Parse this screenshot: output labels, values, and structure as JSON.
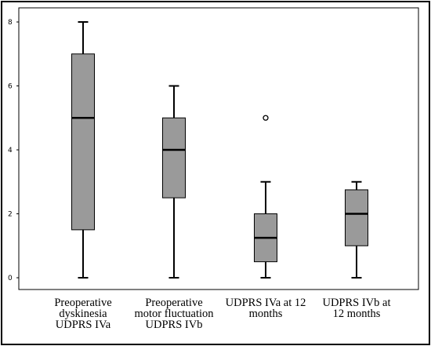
{
  "chart_data": {
    "type": "boxplot",
    "categories": [
      [
        "Preoperative",
        "dyskinesia",
        "UDPRS IVa"
      ],
      [
        "Preoperative",
        "motor fluctuation",
        "UDPRS IVb"
      ],
      [
        "UDPRS IVa at 12",
        "months"
      ],
      [
        "UDPRS IVb at",
        "12 months"
      ]
    ],
    "boxes": [
      {
        "min": 0,
        "q1": 1.5,
        "median": 5,
        "q3": 7,
        "max": 8,
        "outliers": []
      },
      {
        "min": 0,
        "q1": 2.5,
        "median": 4,
        "q3": 5,
        "max": 6,
        "outliers": []
      },
      {
        "min": 0,
        "q1": 0.5,
        "median": 1.25,
        "q3": 2,
        "max": 3,
        "outliers": [
          5
        ]
      },
      {
        "min": 0,
        "q1": 1,
        "median": 2,
        "q3": 2.75,
        "max": 3,
        "outliers": []
      }
    ],
    "yticks": [
      "0",
      "2",
      "4",
      "6",
      "8"
    ],
    "ylim": [
      0,
      8
    ],
    "title": "",
    "xlabel": "",
    "ylabel": "",
    "grid": false,
    "colors": {
      "box_fill": "#9a9a9a",
      "stroke": "#000000",
      "background": "#ffffff"
    }
  }
}
